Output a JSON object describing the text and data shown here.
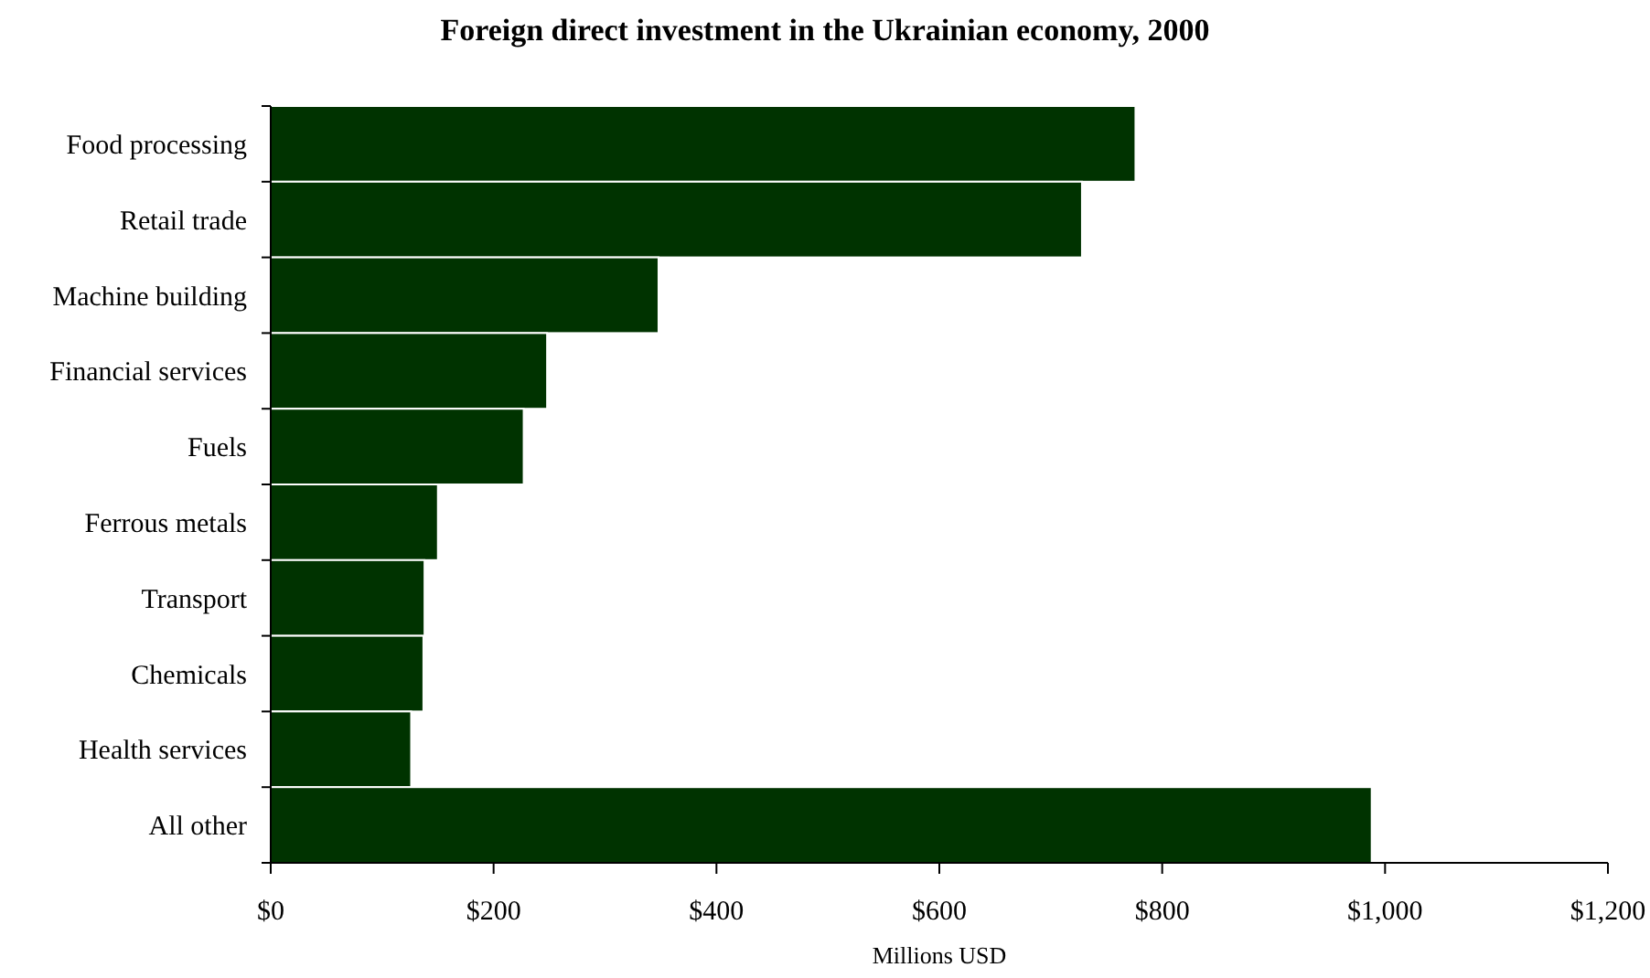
{
  "chart_data": {
    "type": "bar",
    "orientation": "horizontal",
    "title": "Foreign direct investment in the Ukrainian economy, 2000",
    "xlabel": "Millions USD",
    "categories": [
      "Food processing",
      "Retail trade",
      "Machine building",
      "Financial services",
      "Fuels",
      "Ferrous metals",
      "Transport",
      "Chemicals",
      "Health services",
      "All other"
    ],
    "values": [
      776,
      728,
      348,
      248,
      227,
      150,
      138,
      137,
      126,
      988
    ],
    "color": "#003300",
    "xlim": [
      0,
      1200
    ],
    "xticks": [
      {
        "value": 0,
        "label": "$0"
      },
      {
        "value": 200,
        "label": "$200"
      },
      {
        "value": 400,
        "label": "$400"
      },
      {
        "value": 600,
        "label": "$600"
      },
      {
        "value": 800,
        "label": "$800"
      },
      {
        "value": 1000,
        "label": "$1,000"
      },
      {
        "value": 1200,
        "label": "$1,200"
      }
    ],
    "grid": false
  }
}
